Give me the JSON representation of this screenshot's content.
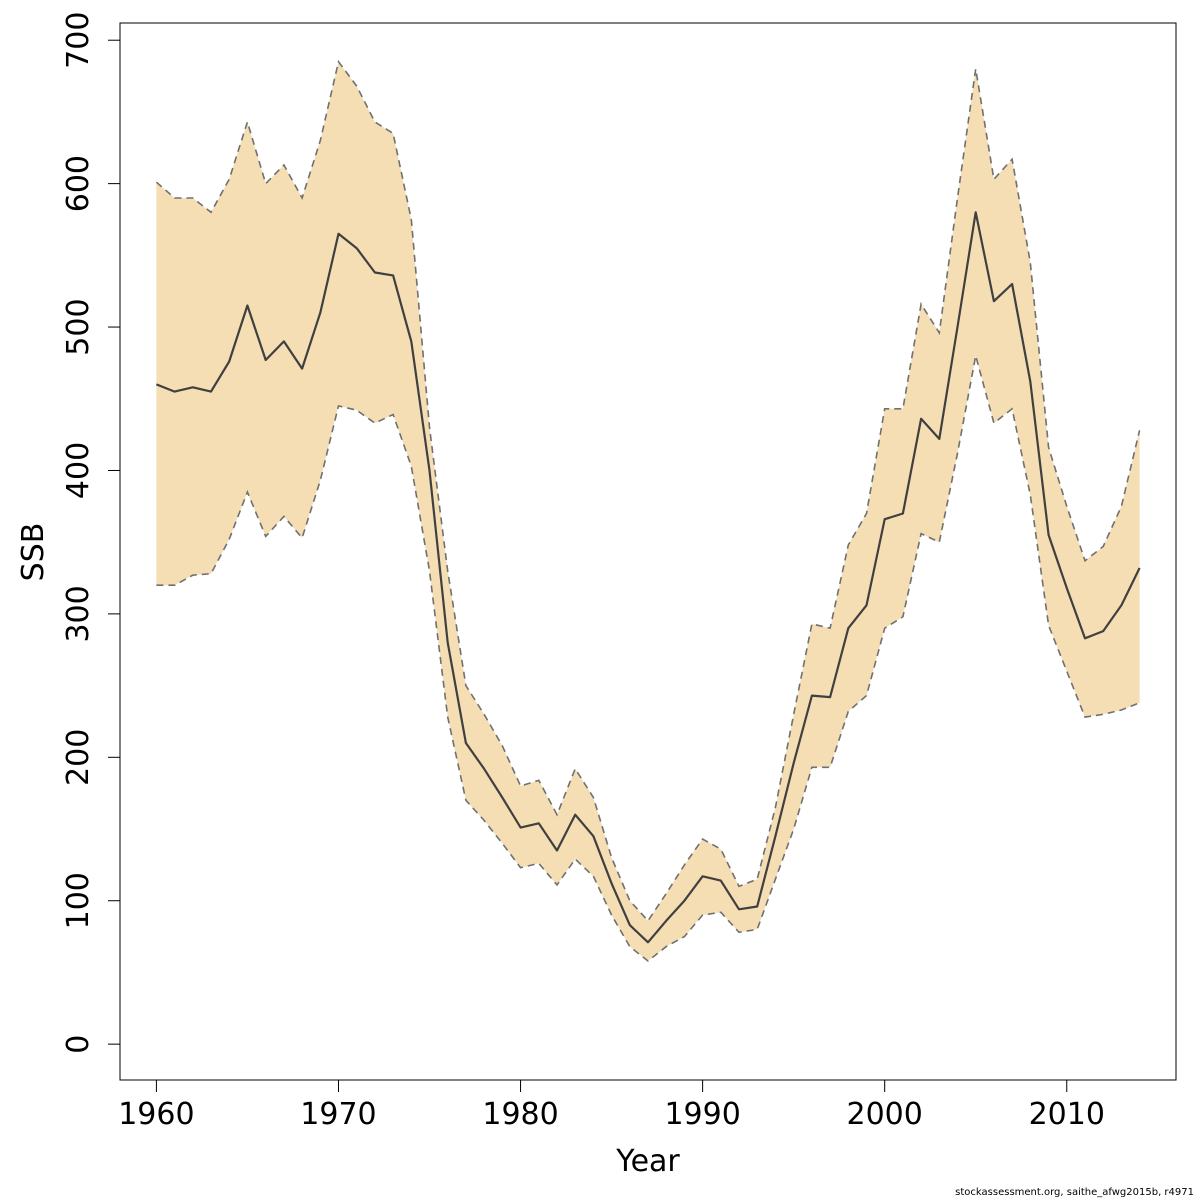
{
  "chart_data": {
    "type": "area",
    "xlabel": "Year",
    "ylabel": "SSB",
    "xlim": [
      1958,
      2016
    ],
    "ylim": [
      -25,
      712
    ],
    "x_ticks": [
      1960,
      1970,
      1980,
      1990,
      2000,
      2010
    ],
    "y_ticks": [
      0,
      100,
      200,
      300,
      400,
      500,
      600,
      700
    ],
    "grid": false,
    "legend": "none",
    "colors": {
      "band": "#f5deb3",
      "line": "#404040",
      "bound": "#707070"
    },
    "x": [
      1960,
      1961,
      1962,
      1963,
      1964,
      1965,
      1966,
      1967,
      1968,
      1969,
      1970,
      1971,
      1972,
      1973,
      1974,
      1975,
      1976,
      1977,
      1978,
      1979,
      1980,
      1981,
      1982,
      1983,
      1984,
      1985,
      1986,
      1987,
      1988,
      1989,
      1990,
      1991,
      1992,
      1993,
      1994,
      1995,
      1996,
      1997,
      1998,
      1999,
      2000,
      2001,
      2002,
      2003,
      2004,
      2005,
      2006,
      2007,
      2008,
      2009,
      2010,
      2011,
      2012,
      2013,
      2014
    ],
    "series": [
      {
        "role": "estimate",
        "style": "solid",
        "values": [
          460,
          455,
          458,
          455,
          476,
          515,
          477,
          490,
          471,
          510,
          565,
          555,
          538,
          536,
          490,
          400,
          280,
          210,
          192,
          172,
          151,
          154,
          135,
          160,
          145,
          112,
          83,
          71,
          86,
          100,
          117,
          114,
          94,
          96,
          145,
          196,
          243,
          242,
          290,
          306,
          366,
          370,
          436,
          422,
          500,
          580,
          518,
          530,
          462,
          355,
          318,
          283,
          288,
          306,
          332
        ]
      },
      {
        "role": "upper",
        "style": "dashed",
        "values": [
          601,
          590,
          590,
          580,
          603,
          643,
          600,
          613,
          590,
          630,
          685,
          668,
          643,
          635,
          575,
          430,
          330,
          250,
          230,
          208,
          180,
          184,
          160,
          192,
          172,
          130,
          100,
          86,
          105,
          125,
          143,
          136,
          110,
          115,
          165,
          230,
          293,
          290,
          348,
          370,
          443,
          443,
          516,
          496,
          590,
          680,
          603,
          617,
          545,
          416,
          375,
          337,
          347,
          375,
          428
        ]
      },
      {
        "role": "lower",
        "style": "dashed",
        "values": [
          320,
          320,
          327,
          328,
          352,
          385,
          354,
          368,
          353,
          393,
          445,
          442,
          433,
          439,
          403,
          330,
          228,
          170,
          156,
          140,
          123,
          126,
          111,
          129,
          117,
          90,
          68,
          58,
          68,
          75,
          90,
          92,
          78,
          80,
          115,
          150,
          193,
          193,
          232,
          243,
          290,
          298,
          356,
          350,
          412,
          480,
          433,
          443,
          383,
          292,
          260,
          228,
          230,
          233,
          238
        ]
      }
    ]
  },
  "footer": {
    "credit": "stockassessment.org, saithe_afwg2015b, r4971"
  }
}
